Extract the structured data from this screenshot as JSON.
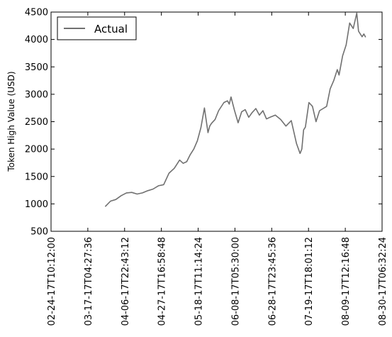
{
  "chart_data": {
    "type": "line",
    "title": "",
    "xlabel": "",
    "ylabel": "Token High Value (USD)",
    "ylim": [
      500,
      4500
    ],
    "yticks": [
      500,
      1000,
      1500,
      2000,
      2500,
      3000,
      3500,
      4000,
      4500
    ],
    "xticks": [
      "02-24-17T10:12:00",
      "03-17-17T04:27:36",
      "04-06-17T22:43:12",
      "04-27-17T16:58:48",
      "05-18-17T11:14:24",
      "06-08-17T05:30:00",
      "06-28-17T23:45:36",
      "07-19-17T18:01:12",
      "08-09-17T12:16:48",
      "08-30-17T06:32:24"
    ],
    "grid": false,
    "legend_position": "top-left",
    "series": [
      {
        "name": "Actual",
        "color": "#707070",
        "x": [
          "03-27-17",
          "03-30-17",
          "04-02-17",
          "04-05-17",
          "04-08-17",
          "04-11-17",
          "04-14-17",
          "04-17-17",
          "04-20-17",
          "04-23-17",
          "04-26-17",
          "04-29-17",
          "05-02-17",
          "05-05-17",
          "05-08-17",
          "05-10-17",
          "05-12-17",
          "05-14-17",
          "05-16-17",
          "05-18-17",
          "05-20-17",
          "05-22-17",
          "05-24-17",
          "05-25-17",
          "05-26-17",
          "05-28-17",
          "05-30-17",
          "06-02-17",
          "06-04-17",
          "06-05-17",
          "06-06-17",
          "06-08-17",
          "06-10-17",
          "06-12-17",
          "06-14-17",
          "06-16-17",
          "06-18-17",
          "06-20-17",
          "06-22-17",
          "06-24-17",
          "06-26-17",
          "06-28-17",
          "07-01-17",
          "07-04-17",
          "07-07-17",
          "07-10-17",
          "07-13-17",
          "07-15-17",
          "07-16-17",
          "07-17-17",
          "07-18-17",
          "07-20-17",
          "07-22-17",
          "07-24-17",
          "07-26-17",
          "07-28-17",
          "07-30-17",
          "08-01-17",
          "08-03-17",
          "08-05-17",
          "08-06-17",
          "08-08-17",
          "08-10-17",
          "08-12-17",
          "08-14-17",
          "08-16-17",
          "08-17-17",
          "08-19-17",
          "08-20-17",
          "08-21-17"
        ],
        "values": [
          950,
          1050,
          1080,
          1150,
          1200,
          1210,
          1180,
          1200,
          1240,
          1270,
          1330,
          1350,
          1560,
          1650,
          1800,
          1740,
          1770,
          1900,
          2000,
          2150,
          2390,
          2750,
          2300,
          2420,
          2470,
          2540,
          2700,
          2850,
          2880,
          2820,
          2950,
          2700,
          2480,
          2680,
          2720,
          2580,
          2670,
          2740,
          2620,
          2700,
          2550,
          2580,
          2620,
          2540,
          2420,
          2520,
          2100,
          1920,
          2000,
          2350,
          2400,
          2850,
          2780,
          2500,
          2700,
          2740,
          2780,
          3100,
          3250,
          3450,
          3350,
          3700,
          3900,
          4300,
          4200,
          4480,
          4150,
          4050,
          4100,
          4040
        ]
      }
    ]
  }
}
